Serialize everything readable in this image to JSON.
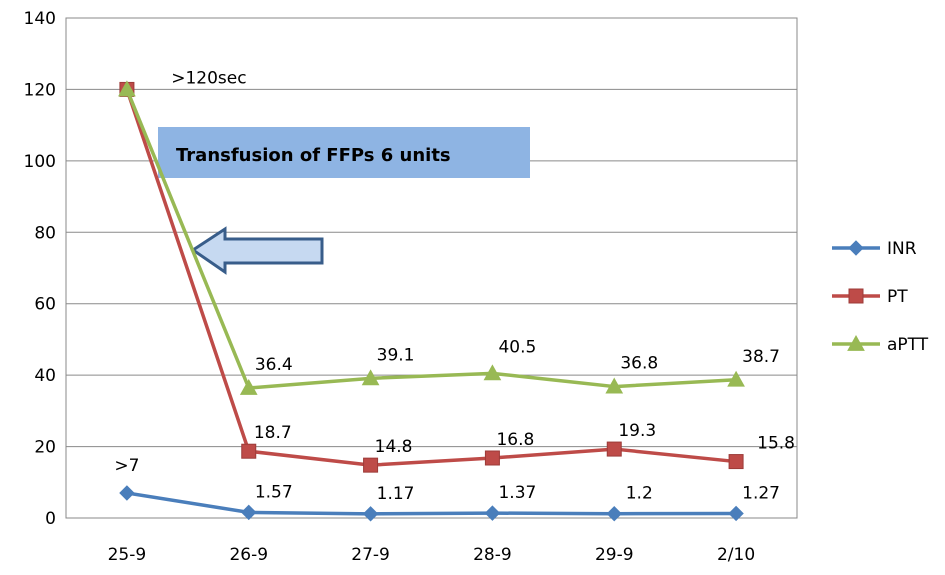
{
  "chart_data": {
    "type": "line",
    "categories": [
      "25-9",
      "26-9",
      "27-9",
      "28-9",
      "29-9",
      "2/10"
    ],
    "ylim": [
      0,
      140
    ],
    "yticks": [
      0,
      20,
      40,
      60,
      80,
      100,
      120,
      140
    ],
    "grid": "horizontal",
    "legend_position": "right",
    "series": [
      {
        "name": "INR",
        "color": "#4a7ebb",
        "marker": "diamond",
        "values": [
          7,
          1.57,
          1.17,
          1.37,
          1.2,
          1.27
        ],
        "labels": [
          ">7",
          "1.57",
          "1.17",
          "1.37",
          "1.2",
          "1.27"
        ]
      },
      {
        "name": "PT",
        "color": "#be4b48",
        "marker": "square",
        "values": [
          120,
          18.7,
          14.8,
          16.8,
          19.3,
          15.8
        ],
        "labels": [
          "",
          "18.7",
          "14.8",
          "16.8",
          "19.3",
          "15.8"
        ]
      },
      {
        "name": "aPTT",
        "color": "#98b954",
        "marker": "triangle",
        "values": [
          120,
          36.4,
          39.1,
          40.5,
          36.8,
          38.7
        ],
        "labels": [
          ">120sec",
          "36.4",
          "39.1",
          "40.5",
          "36.8",
          "38.7"
        ]
      }
    ],
    "annotations": {
      "box_text": "Transfusion of FFPs 6 units",
      "box_color": "#8eb4e3",
      "arrow_color": "#385d8a",
      "arrow_fill": "#c6d9f1"
    }
  }
}
